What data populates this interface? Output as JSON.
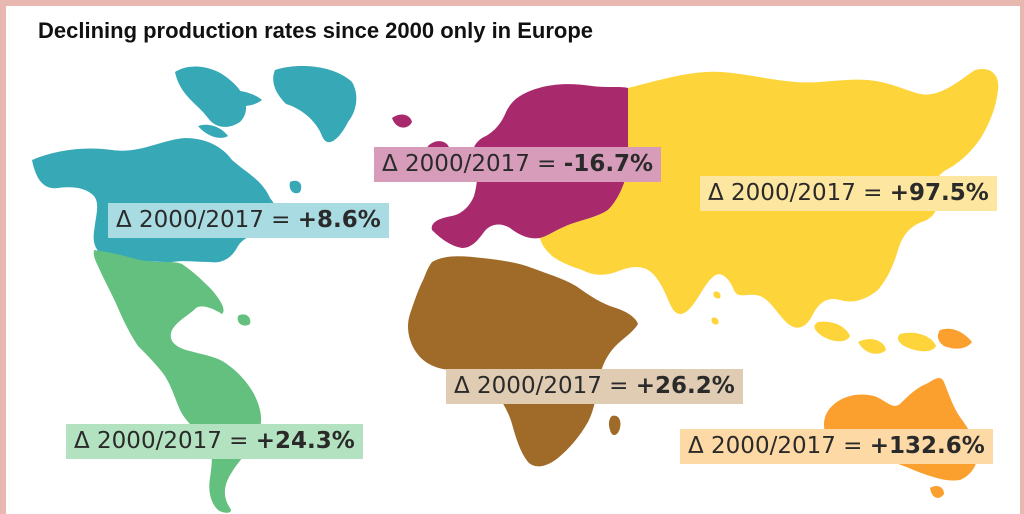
{
  "title": "Declining production rates since 2000 only in Europe",
  "colors": {
    "north_america": "#36a8b6",
    "south_america": "#63c07f",
    "europe": "#a8296c",
    "africa": "#a06b28",
    "asia": "#fdd43a",
    "oceania": "#fba02e",
    "frame": "#e8b8b0"
  },
  "regions": [
    {
      "id": "north_america",
      "prefix": "Δ 2000/2017 = ",
      "value": "+8.6%",
      "label_bg": "#a8dbe2"
    },
    {
      "id": "europe",
      "prefix": "Δ 2000/2017 = ",
      "value": "-16.7%",
      "label_bg": "#d79cb9"
    },
    {
      "id": "asia",
      "prefix": "Δ 2000/2017 = ",
      "value": "+97.5%",
      "label_bg": "#fde6a0"
    },
    {
      "id": "africa",
      "prefix": "Δ 2000/2017 = ",
      "value": "+26.2%",
      "label_bg": "#e0cbb3"
    },
    {
      "id": "south_america",
      "prefix": "Δ 2000/2017 = ",
      "value": "+24.3%",
      "label_bg": "#b2e2c0"
    },
    {
      "id": "oceania",
      "prefix": "Δ 2000/2017 = ",
      "value": "+132.6%",
      "label_bg": "#fdd9a5"
    }
  ]
}
